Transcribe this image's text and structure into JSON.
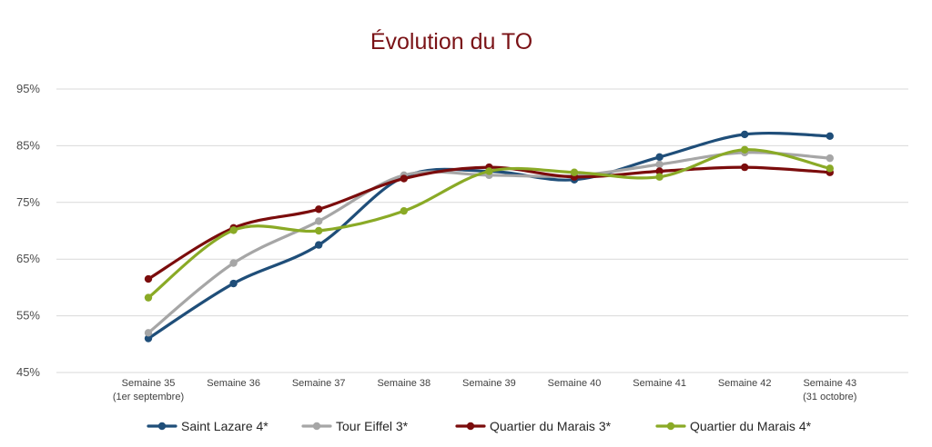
{
  "chart_data": {
    "type": "line",
    "title": "Évolution du TO",
    "xlabel": "",
    "ylabel": "",
    "ylim": [
      45,
      95
    ],
    "yticks": [
      45,
      55,
      65,
      75,
      85,
      95
    ],
    "ytick_labels": [
      "45%",
      "55%",
      "65%",
      "75%",
      "85%",
      "95%"
    ],
    "grid": true,
    "smooth": true,
    "legend_position": "bottom",
    "categories": [
      [
        "Semaine 35",
        "(1er septembre)"
      ],
      [
        "Semaine 36"
      ],
      [
        "Semaine 37"
      ],
      [
        "Semaine 38"
      ],
      [
        "Semaine 39"
      ],
      [
        "Semaine 40"
      ],
      [
        "Semaine 41"
      ],
      [
        "Semaine 42"
      ],
      [
        "Semaine 43",
        "(31 octobre)"
      ]
    ],
    "series": [
      {
        "name": "Saint Lazare 4*",
        "color": "#1f4e79",
        "values": [
          51,
          60.7,
          67.5,
          79.5,
          80.5,
          79,
          83,
          87,
          86.7
        ]
      },
      {
        "name": "Tour Eiffel 3*",
        "color": "#a6a6a6",
        "values": [
          52,
          64.3,
          71.7,
          79.8,
          79.8,
          79.7,
          81.7,
          83.8,
          82.8
        ]
      },
      {
        "name": "Quartier du Marais 3*",
        "color": "#7b0c0c",
        "values": [
          61.5,
          70.5,
          73.8,
          79.2,
          81.2,
          79.5,
          80.5,
          81.2,
          80.3
        ]
      },
      {
        "name": "Quartier du Marais 4*",
        "color": "#8aaa26",
        "values": [
          58.2,
          70.1,
          70,
          73.5,
          80.5,
          80.3,
          79.5,
          84.3,
          81
        ]
      }
    ]
  }
}
